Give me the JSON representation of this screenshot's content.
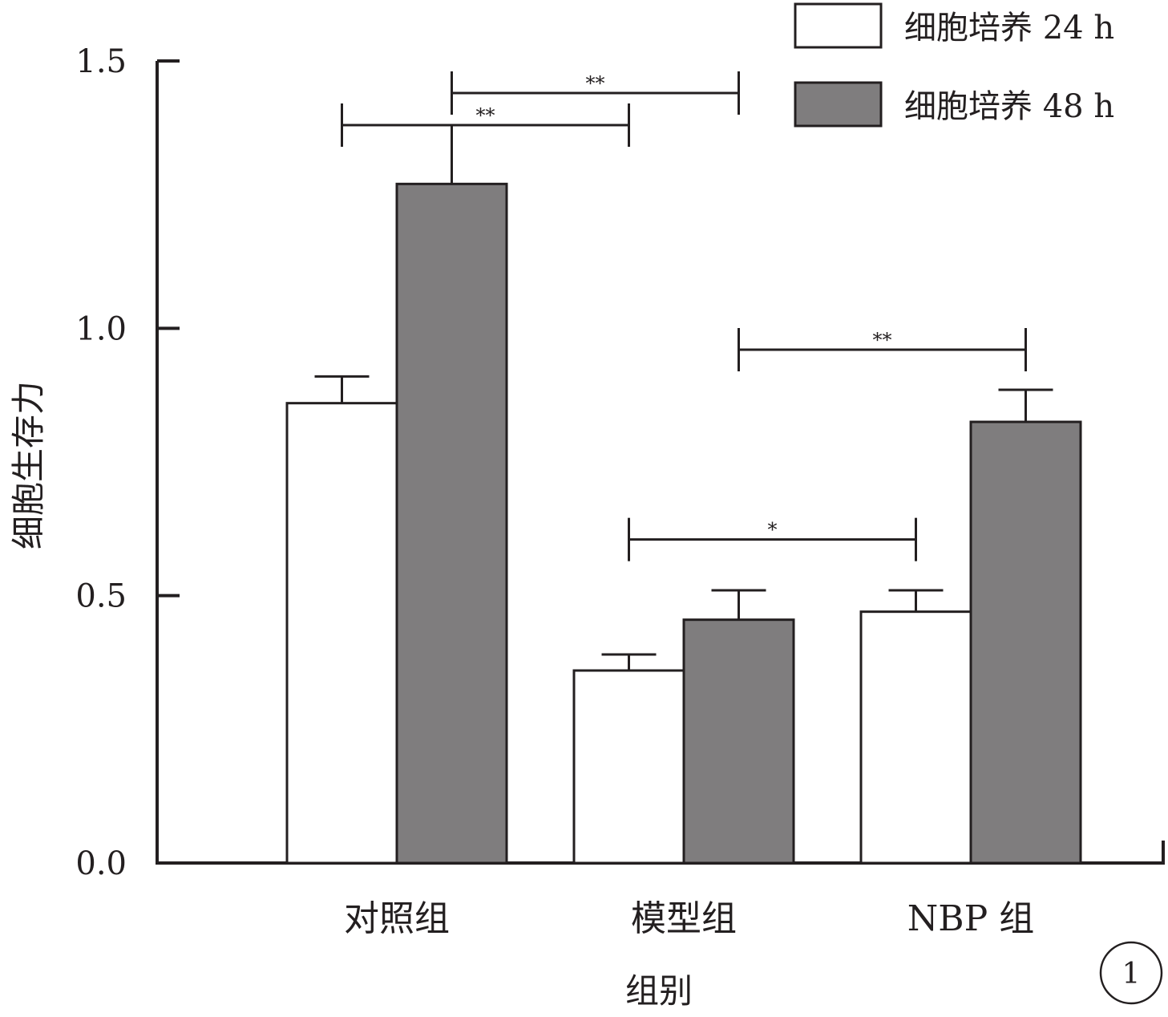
{
  "chart_data": {
    "type": "bar",
    "xlabel": "组别",
    "ylabel": "细胞生存力",
    "ylim": [
      0,
      1.5
    ],
    "yticks": [
      "0.0",
      "0.5",
      "1.0",
      "1.5"
    ],
    "categories": [
      "对照组",
      "模型组",
      "NBP 组"
    ],
    "series": [
      {
        "name": "细胞培养 24 h",
        "values": [
          0.86,
          0.36,
          0.47
        ],
        "errors": [
          0.05,
          0.03,
          0.04
        ],
        "color": "#ffffff"
      },
      {
        "name": "细胞培养 48 h",
        "values": [
          1.27,
          0.455,
          0.825
        ],
        "errors": [
          0.11,
          0.055,
          0.06
        ],
        "color": "#7f7d7e"
      }
    ],
    "significance": [
      {
        "label": "**",
        "from": {
          "category": 0,
          "series": 1
        },
        "to": {
          "category": 1,
          "series": 1
        },
        "y": 1.44
      },
      {
        "label": "**",
        "from": {
          "category": 0,
          "series": 0
        },
        "to": {
          "category": 1,
          "series": 0
        },
        "y": 1.38
      },
      {
        "label": "**",
        "from": {
          "category": 1,
          "series": 1
        },
        "to": {
          "category": 2,
          "series": 1
        },
        "y": 0.96
      },
      {
        "label": "*",
        "from": {
          "category": 1,
          "series": 0
        },
        "to": {
          "category": 2,
          "series": 0
        },
        "y": 0.605
      }
    ],
    "legend_position": "top-right",
    "grid": false
  },
  "panel_label": "1"
}
